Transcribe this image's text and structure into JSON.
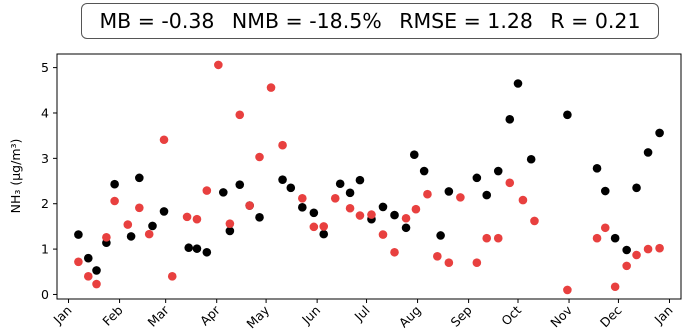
{
  "stats": {
    "mb": "MB = -0.38",
    "nmb": "NMB = -18.5%",
    "rmse": "RMSE = 1.28",
    "r": "R = 0.21"
  },
  "colors": {
    "observed": "#000000",
    "modeled": "#e8403f"
  },
  "chart_data": {
    "type": "scatter",
    "xlabel": "",
    "ylabel": "NH₃ (μg/m³)",
    "ylim": [
      -0.1,
      5.3
    ],
    "yticks": [
      0,
      1,
      2,
      3,
      4,
      5
    ],
    "xlim": [
      "2000-12-25",
      "2002-01-08"
    ],
    "xticks": [
      {
        "label": "Jan",
        "date": "2001-01-01"
      },
      {
        "label": "Feb",
        "date": "2001-02-01"
      },
      {
        "label": "Mar",
        "date": "2001-03-01"
      },
      {
        "label": "Apr",
        "date": "2001-04-01"
      },
      {
        "label": "May",
        "date": "2001-05-01"
      },
      {
        "label": "Jun",
        "date": "2001-06-01"
      },
      {
        "label": "Jul",
        "date": "2001-07-01"
      },
      {
        "label": "Aug",
        "date": "2001-08-01"
      },
      {
        "label": "Sep",
        "date": "2001-09-01"
      },
      {
        "label": "Oct",
        "date": "2001-10-01"
      },
      {
        "label": "Nov",
        "date": "2001-11-01"
      },
      {
        "label": "Dec",
        "date": "2001-12-01"
      },
      {
        "label": "Jan",
        "date": "2002-01-01"
      }
    ],
    "grid": false,
    "series": [
      {
        "color": "#000000",
        "points": [
          [
            "2001-01-07",
            1.32
          ],
          [
            "2001-01-13",
            0.8
          ],
          [
            "2001-01-18",
            0.53
          ],
          [
            "2001-01-24",
            1.14
          ],
          [
            "2001-01-29",
            2.43
          ],
          [
            "2001-02-08",
            1.28
          ],
          [
            "2001-02-13",
            2.57
          ],
          [
            "2001-02-21",
            1.51
          ],
          [
            "2001-02-28",
            1.83
          ],
          [
            "2001-03-15",
            1.03
          ],
          [
            "2001-03-20",
            1.01
          ],
          [
            "2001-03-26",
            0.93
          ],
          [
            "2001-04-05",
            2.25
          ],
          [
            "2001-04-09",
            1.4
          ],
          [
            "2001-04-15",
            2.42
          ],
          [
            "2001-04-21",
            1.96
          ],
          [
            "2001-04-27",
            1.7
          ],
          [
            "2001-05-11",
            2.53
          ],
          [
            "2001-05-16",
            2.35
          ],
          [
            "2001-05-23",
            1.92
          ],
          [
            "2001-05-30",
            1.8
          ],
          [
            "2001-06-05",
            1.33
          ],
          [
            "2001-06-15",
            2.44
          ],
          [
            "2001-06-21",
            2.24
          ],
          [
            "2001-06-27",
            2.52
          ],
          [
            "2001-07-04",
            1.66
          ],
          [
            "2001-07-11",
            1.93
          ],
          [
            "2001-07-18",
            1.75
          ],
          [
            "2001-07-25",
            1.47
          ],
          [
            "2001-07-30",
            3.08
          ],
          [
            "2001-08-05",
            2.72
          ],
          [
            "2001-08-15",
            1.3
          ],
          [
            "2001-08-20",
            2.27
          ],
          [
            "2001-09-06",
            2.57
          ],
          [
            "2001-09-12",
            2.19
          ],
          [
            "2001-09-19",
            2.72
          ],
          [
            "2001-09-26",
            3.86
          ],
          [
            "2001-10-01",
            4.65
          ],
          [
            "2001-10-09",
            2.98
          ],
          [
            "2001-10-31",
            3.96
          ],
          [
            "2001-11-18",
            2.78
          ],
          [
            "2001-11-23",
            2.28
          ],
          [
            "2001-11-29",
            1.24
          ],
          [
            "2001-12-06",
            0.98
          ],
          [
            "2001-12-12",
            2.35
          ],
          [
            "2001-12-19",
            3.13
          ],
          [
            "2001-12-26",
            3.56
          ]
        ]
      },
      {
        "color": "#e8403f",
        "points": [
          [
            "2001-01-07",
            0.72
          ],
          [
            "2001-01-13",
            0.4
          ],
          [
            "2001-01-18",
            0.23
          ],
          [
            "2001-01-24",
            1.26
          ],
          [
            "2001-01-29",
            2.06
          ],
          [
            "2001-02-06",
            1.54
          ],
          [
            "2001-02-13",
            1.91
          ],
          [
            "2001-02-19",
            1.33
          ],
          [
            "2001-02-28",
            3.41
          ],
          [
            "2001-03-05",
            0.4
          ],
          [
            "2001-03-14",
            1.71
          ],
          [
            "2001-03-20",
            1.66
          ],
          [
            "2001-03-26",
            2.29
          ],
          [
            "2001-04-02",
            5.06
          ],
          [
            "2001-04-09",
            1.56
          ],
          [
            "2001-04-15",
            3.96
          ],
          [
            "2001-04-21",
            1.96
          ],
          [
            "2001-04-27",
            3.03
          ],
          [
            "2001-05-04",
            4.56
          ],
          [
            "2001-05-11",
            3.29
          ],
          [
            "2001-05-23",
            2.12
          ],
          [
            "2001-05-30",
            1.49
          ],
          [
            "2001-06-05",
            1.5
          ],
          [
            "2001-06-12",
            2.12
          ],
          [
            "2001-06-21",
            1.9
          ],
          [
            "2001-06-27",
            1.74
          ],
          [
            "2001-07-04",
            1.76
          ],
          [
            "2001-07-11",
            1.32
          ],
          [
            "2001-07-18",
            0.93
          ],
          [
            "2001-07-25",
            1.68
          ],
          [
            "2001-07-31",
            1.88
          ],
          [
            "2001-08-07",
            2.21
          ],
          [
            "2001-08-13",
            0.84
          ],
          [
            "2001-08-20",
            0.7
          ],
          [
            "2001-08-27",
            2.14
          ],
          [
            "2001-09-06",
            0.7
          ],
          [
            "2001-09-12",
            1.24
          ],
          [
            "2001-09-19",
            1.24
          ],
          [
            "2001-09-26",
            2.46
          ],
          [
            "2001-10-04",
            2.08
          ],
          [
            "2001-10-11",
            1.62
          ],
          [
            "2001-10-31",
            0.1
          ],
          [
            "2001-11-18",
            1.24
          ],
          [
            "2001-11-23",
            1.47
          ],
          [
            "2001-11-29",
            0.17
          ],
          [
            "2001-12-06",
            0.63
          ],
          [
            "2001-12-12",
            0.87
          ],
          [
            "2001-12-19",
            1.0
          ],
          [
            "2001-12-26",
            1.02
          ]
        ]
      }
    ]
  }
}
